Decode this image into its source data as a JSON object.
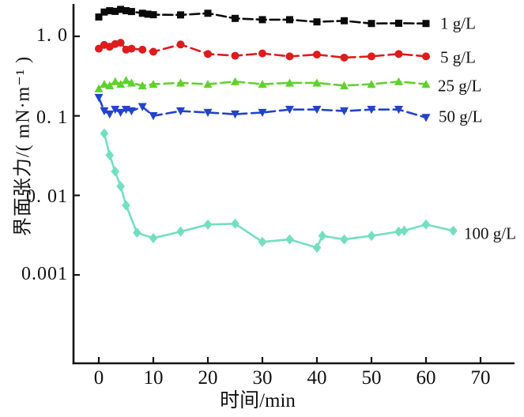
{
  "chart_data": {
    "type": "line",
    "title": "",
    "xlabel": "时间/min",
    "ylabel": "界面张力/( mN·m⁻¹ )",
    "grid": false,
    "legend_position": "right-of-last-point",
    "axis_color": "#141414",
    "x_axis": {
      "min": 0,
      "max": 75,
      "tick_values": [
        0,
        10,
        20,
        30,
        40,
        50,
        60,
        70
      ],
      "tick_labels": [
        "0",
        "10",
        "20",
        "30",
        "40",
        "50",
        "60",
        "70"
      ]
    },
    "y_axis": {
      "scale": "log",
      "min": 0.0004,
      "max": 2.5,
      "tick_values": [
        1.0,
        0.1,
        0.01,
        0.001
      ],
      "tick_labels": [
        "1. 0",
        "0. 1",
        "0. 01",
        "0.001"
      ]
    },
    "series": [
      {
        "id": "1gL",
        "label": "1 g/L",
        "color": "#0a0a0a",
        "marker": "square",
        "marker_size": 4.5,
        "dash": "12,5",
        "points": [
          [
            0,
            1.75
          ],
          [
            1,
            2.02
          ],
          [
            2,
            2.1
          ],
          [
            3,
            2.06
          ],
          [
            4,
            2.18
          ],
          [
            5,
            2.1
          ],
          [
            6,
            2.05
          ],
          [
            8,
            1.95
          ],
          [
            9,
            1.9
          ],
          [
            10,
            1.87
          ],
          [
            15,
            1.86
          ],
          [
            20,
            1.95
          ],
          [
            25,
            1.68
          ],
          [
            30,
            1.62
          ],
          [
            35,
            1.62
          ],
          [
            40,
            1.52
          ],
          [
            45,
            1.57
          ],
          [
            50,
            1.45
          ],
          [
            55,
            1.46
          ],
          [
            60,
            1.45
          ]
        ]
      },
      {
        "id": "5gL",
        "label": "5 g/L",
        "color": "#de1c1c",
        "marker": "circle",
        "marker_size": 5,
        "dash": "12,6",
        "points": [
          [
            0,
            0.7
          ],
          [
            1,
            0.78
          ],
          [
            2,
            0.74
          ],
          [
            3,
            0.8
          ],
          [
            4,
            0.83
          ],
          [
            5,
            0.68
          ],
          [
            6,
            0.7
          ],
          [
            8,
            0.68
          ],
          [
            10,
            0.64
          ],
          [
            15,
            0.79
          ],
          [
            20,
            0.6
          ],
          [
            25,
            0.57
          ],
          [
            30,
            0.61
          ],
          [
            35,
            0.56
          ],
          [
            40,
            0.59
          ],
          [
            45,
            0.54
          ],
          [
            50,
            0.56
          ],
          [
            55,
            0.6
          ],
          [
            60,
            0.56
          ]
        ]
      },
      {
        "id": "25gL",
        "label": "25 g/L",
        "color": "#5fd12e",
        "marker": "triangle-up",
        "marker_size": 5.5,
        "dash": "12,6",
        "points": [
          [
            0,
            0.22
          ],
          [
            1,
            0.25
          ],
          [
            2,
            0.24
          ],
          [
            3,
            0.27
          ],
          [
            4,
            0.25
          ],
          [
            5,
            0.28
          ],
          [
            6,
            0.26
          ],
          [
            8,
            0.24
          ],
          [
            10,
            0.25
          ],
          [
            15,
            0.26
          ],
          [
            20,
            0.25
          ],
          [
            25,
            0.27
          ],
          [
            30,
            0.25
          ],
          [
            35,
            0.26
          ],
          [
            40,
            0.26
          ],
          [
            45,
            0.24
          ],
          [
            50,
            0.25
          ],
          [
            55,
            0.27
          ],
          [
            60,
            0.25
          ]
        ]
      },
      {
        "id": "50gL",
        "label": "50 g/L",
        "color": "#2343cc",
        "marker": "triangle-down",
        "marker_size": 5.5,
        "dash": "12,6",
        "points": [
          [
            0,
            0.17
          ],
          [
            1,
            0.115
          ],
          [
            2,
            0.105
          ],
          [
            3,
            0.12
          ],
          [
            4,
            0.11
          ],
          [
            5,
            0.12
          ],
          [
            6,
            0.115
          ],
          [
            8,
            0.13
          ],
          [
            10,
            0.1
          ],
          [
            15,
            0.115
          ],
          [
            20,
            0.11
          ],
          [
            25,
            0.105
          ],
          [
            30,
            0.11
          ],
          [
            35,
            0.12
          ],
          [
            40,
            0.12
          ],
          [
            45,
            0.115
          ],
          [
            50,
            0.12
          ],
          [
            55,
            0.12
          ],
          [
            60,
            0.095
          ]
        ]
      },
      {
        "id": "100gL",
        "label": "100 g/L",
        "color": "#72dfc0",
        "marker": "diamond",
        "marker_size": 6.5,
        "dash": "",
        "points": [
          [
            1,
            0.06
          ],
          [
            2,
            0.032
          ],
          [
            3,
            0.02
          ],
          [
            4,
            0.013
          ],
          [
            5,
            0.0075
          ],
          [
            7,
            0.0034
          ],
          [
            10,
            0.0029
          ],
          [
            15,
            0.0035
          ],
          [
            20,
            0.0043
          ],
          [
            25,
            0.0044
          ],
          [
            30,
            0.0026
          ],
          [
            35,
            0.0028
          ],
          [
            40,
            0.0022
          ],
          [
            41,
            0.0031
          ],
          [
            45,
            0.0028
          ],
          [
            50,
            0.0031
          ],
          [
            55,
            0.0035
          ],
          [
            56,
            0.0036
          ],
          [
            60,
            0.0043
          ],
          [
            65,
            0.0036
          ]
        ]
      }
    ]
  }
}
